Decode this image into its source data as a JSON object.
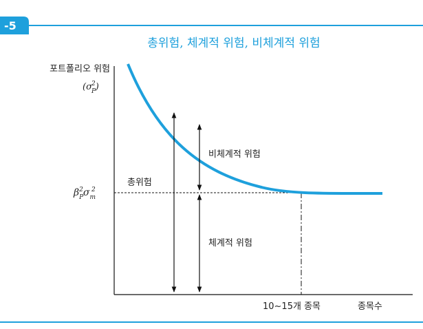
{
  "figure": {
    "number": "-5",
    "title": "총위험, 체계적 위험, 비체계적 위험",
    "y_axis_label": "포트폴리오 위험",
    "y_axis_symbol": [
      "(σ",
      "P",
      "2",
      ")"
    ],
    "level_symbol": [
      "β",
      "P",
      "2",
      "σ",
      "m",
      "2"
    ],
    "labels": {
      "total": "총위험",
      "unsystematic": "비체계적 위험",
      "systematic": "체계적 위험"
    },
    "x_axis_marker": "10~15개 종목",
    "x_axis_label": "종목수"
  }
}
